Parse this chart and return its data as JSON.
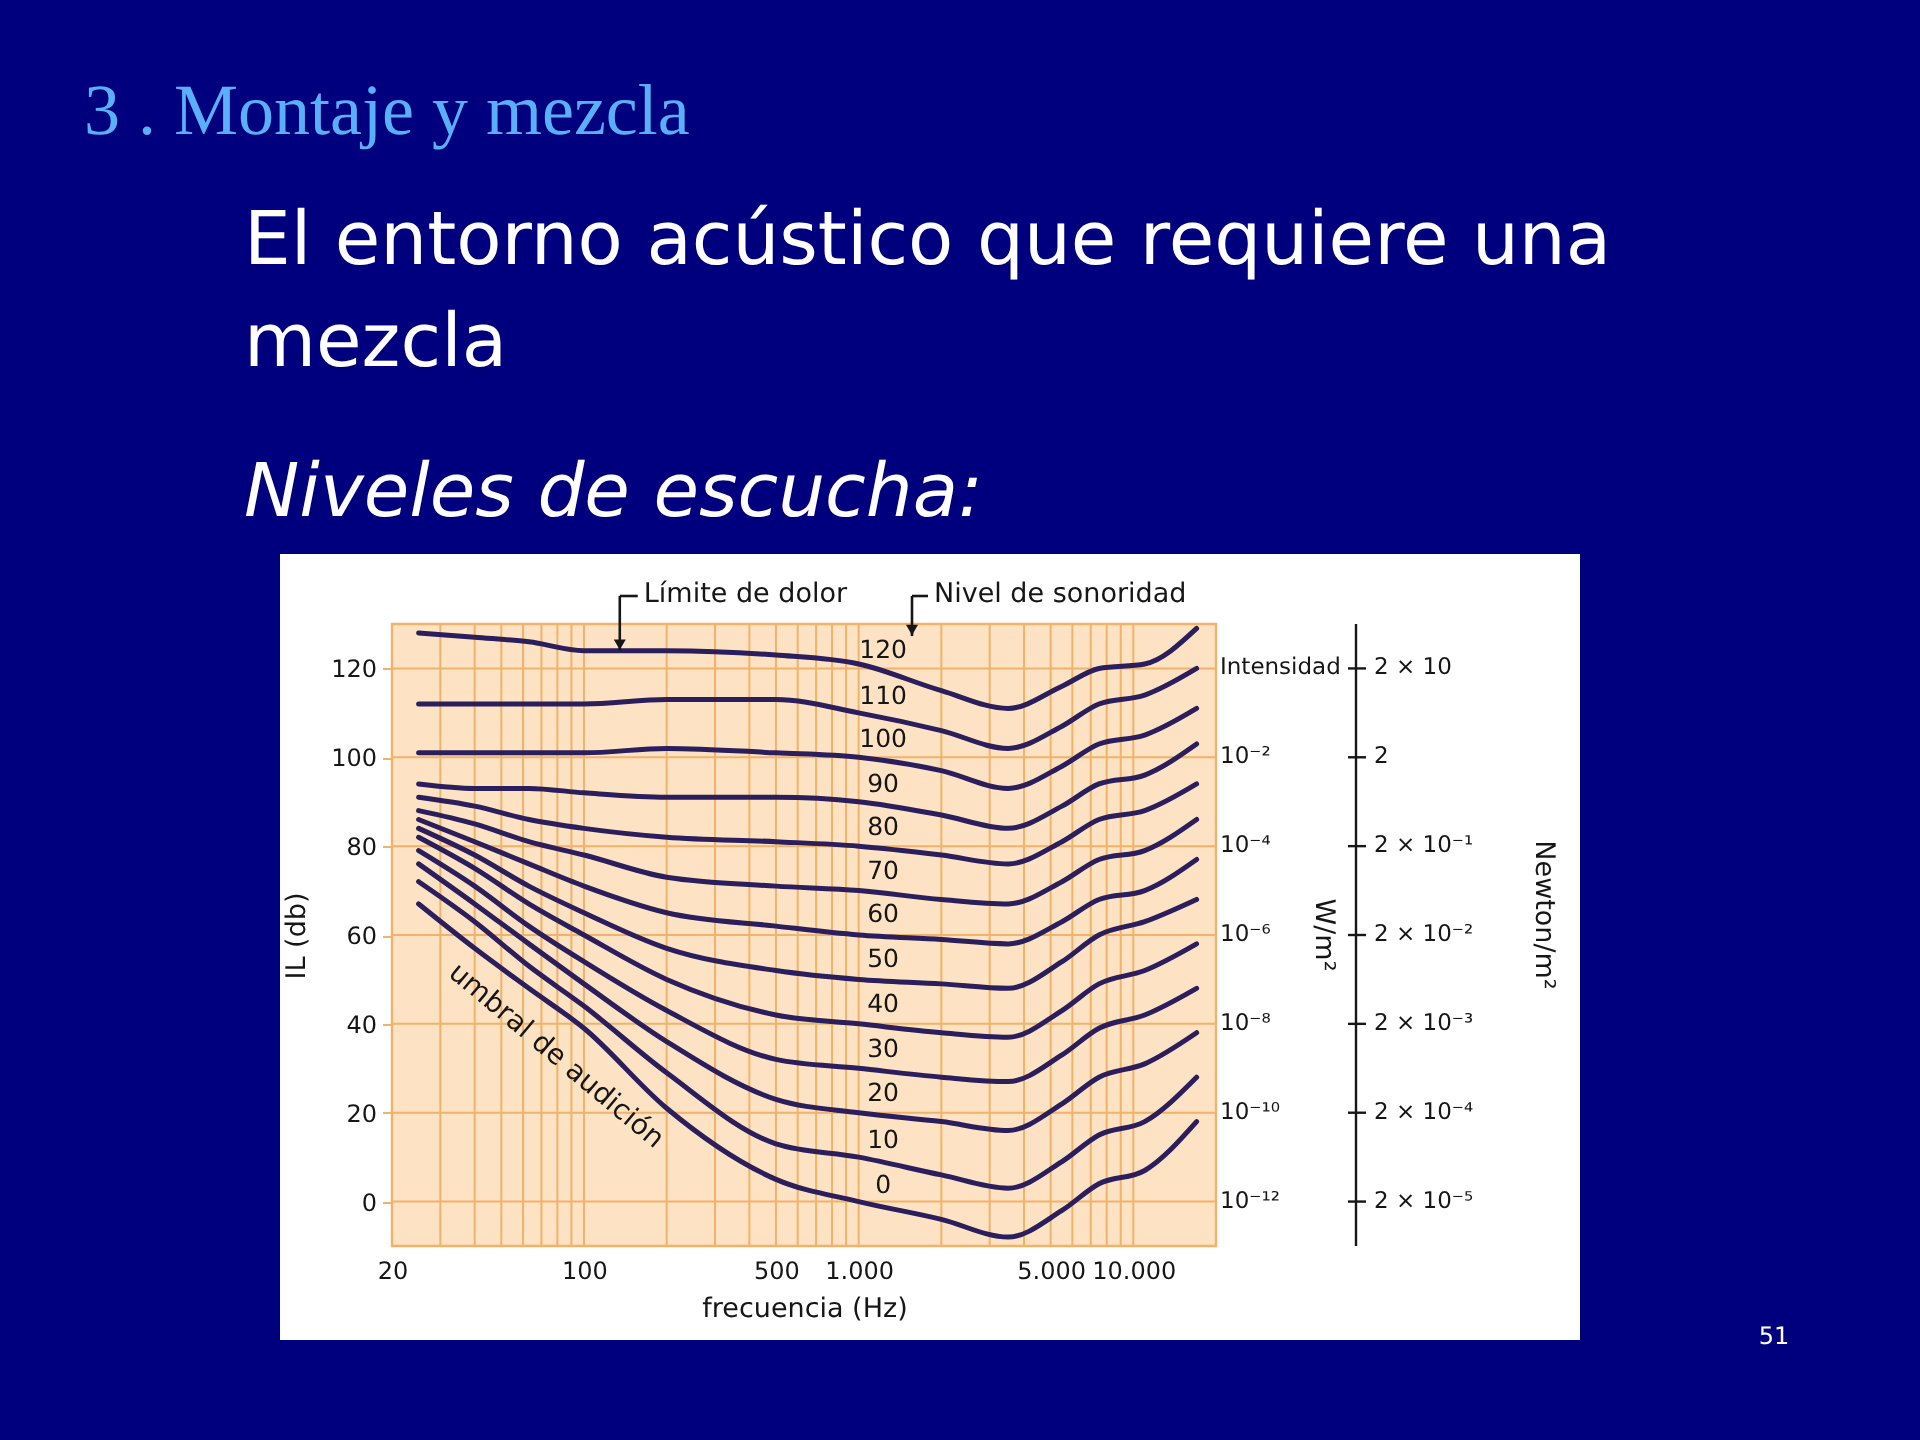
{
  "chart_data": {
    "type": "line",
    "title": "El entorno acústico que requiere una mezcla",
    "subtitle": "Niveles de escucha:",
    "xlabel": "frecuencia (Hz)",
    "ylabel": "IL (db)",
    "annotations": [
      "3 . Montaje y mezcla",
      {
        "text": "Límite de dolor",
        "x": 135,
        "y": 124
      },
      "Nivel de sonoridad",
      "umbral de audición",
      "Intensidad",
      "10⁻²",
      "10⁻⁴",
      "10⁻⁶",
      "10⁻⁸",
      "10⁻¹⁰",
      "10⁻¹²",
      "W/m²",
      "2 × 10",
      "2",
      "2 × 10⁻¹",
      "2 × 10⁻²",
      "2 × 10⁻³",
      "2 × 10⁻⁴",
      "2 × 10⁻⁵",
      "Newton/m²",
      "51"
    ],
    "x": [
      25,
      40,
      63,
      100,
      200,
      500,
      1000,
      2000,
      3500,
      5500,
      7500,
      11000,
      17000
    ],
    "series": [
      {
        "name": "0",
        "color": "#2a1e5c",
        "values": [
          67,
          57,
          48,
          39,
          21,
          5,
          0,
          -4,
          -8,
          -2,
          4,
          7,
          18
        ]
      },
      {
        "name": "10",
        "color": "#2a1e5c",
        "values": [
          72,
          63,
          53,
          44,
          29,
          13,
          10,
          6,
          3,
          9,
          15,
          18,
          28
        ]
      },
      {
        "name": "20",
        "color": "#2a1e5c",
        "values": [
          76,
          67,
          58,
          49,
          36,
          23,
          20,
          18,
          16,
          22,
          28,
          31,
          38
        ]
      },
      {
        "name": "30",
        "color": "#2a1e5c",
        "values": [
          79,
          71,
          62,
          54,
          43,
          32,
          30,
          28,
          27,
          33,
          39,
          42,
          48
        ]
      },
      {
        "name": "40",
        "color": "#2a1e5c",
        "values": [
          82,
          75,
          67,
          60,
          50,
          42,
          40,
          38,
          37,
          43,
          49,
          52,
          58
        ]
      },
      {
        "name": "50",
        "color": "#2a1e5c",
        "values": [
          84,
          78,
          71,
          65,
          57,
          52,
          50,
          49,
          48,
          54,
          60,
          63,
          68
        ]
      },
      {
        "name": "60",
        "color": "#2a1e5c",
        "values": [
          86,
          81,
          76,
          71,
          65,
          62,
          60,
          59,
          58,
          63,
          68,
          70,
          77
        ]
      },
      {
        "name": "70",
        "color": "#2a1e5c",
        "values": [
          88,
          85,
          81,
          78,
          73,
          71,
          70,
          68,
          67,
          72,
          77,
          79,
          86
        ]
      },
      {
        "name": "80",
        "color": "#2a1e5c",
        "values": [
          91,
          89,
          86,
          84,
          82,
          81,
          80,
          78,
          76,
          81,
          86,
          88,
          94
        ]
      },
      {
        "name": "90",
        "color": "#2a1e5c",
        "values": [
          94,
          93,
          93,
          92,
          91,
          91,
          90,
          87,
          84,
          89,
          94,
          96,
          103
        ]
      },
      {
        "name": "100",
        "color": "#2a1e5c",
        "values": [
          101,
          101,
          101,
          101,
          102,
          101,
          100,
          97,
          93,
          98,
          103,
          105,
          111
        ]
      },
      {
        "name": "110",
        "color": "#2a1e5c",
        "values": [
          112,
          112,
          112,
          112,
          113,
          113,
          110,
          106,
          102,
          107,
          112,
          114,
          120
        ]
      },
      {
        "name": "120",
        "color": "#2a1e5c",
        "values": [
          128,
          127,
          126,
          124,
          124,
          123,
          121,
          115,
          111,
          116,
          120,
          121,
          129
        ]
      }
    ],
    "xlim": [
      20,
      20000
    ],
    "ylim": [
      -10,
      130
    ],
    "xticks": [
      20,
      {
        "value": 30,
        "label": null
      },
      {
        "value": 40,
        "label": null
      },
      {
        "value": 50,
        "label": null
      },
      {
        "value": 60,
        "label": null
      },
      {
        "value": 70,
        "label": null
      },
      {
        "value": 80,
        "label": null
      },
      {
        "value": 90,
        "label": null
      },
      100,
      {
        "value": 200,
        "label": null
      },
      {
        "value": 300,
        "label": null
      },
      {
        "value": 400,
        "label": null
      },
      500,
      {
        "value": 600,
        "label": null
      },
      {
        "value": 700,
        "label": null
      },
      {
        "value": 800,
        "label": null
      },
      {
        "value": 900,
        "label": null
      },
      {
        "value": 1000,
        "label": "1.000"
      },
      {
        "value": 2000,
        "label": null
      },
      {
        "value": 3000,
        "label": null
      },
      {
        "value": 4000,
        "label": null
      },
      {
        "value": 5000,
        "label": "5.000"
      },
      {
        "value": 6000,
        "label": null
      },
      {
        "value": 7000,
        "label": null
      },
      {
        "value": 8000,
        "label": null
      },
      {
        "value": 9000,
        "label": null
      },
      {
        "value": 10000,
        "label": "10.000"
      }
    ],
    "yticks": [
      0,
      20,
      40,
      60,
      80,
      100,
      120
    ],
    "log": "x",
    "grid": true
  }
}
